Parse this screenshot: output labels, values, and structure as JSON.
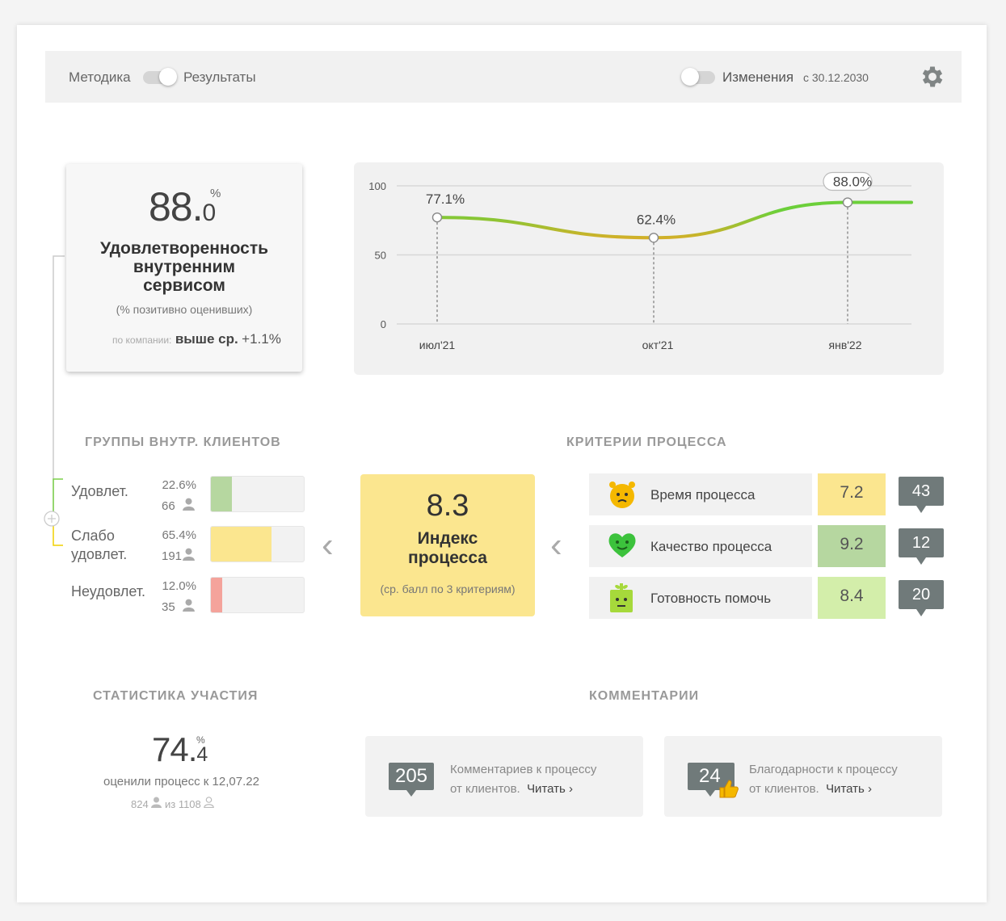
{
  "topbar": {
    "method_label": "Методика",
    "results_label": "Результаты",
    "changes_label": "Изменения",
    "changes_since": "с 30.12.2030"
  },
  "kpi": {
    "value_int": "88.",
    "value_dec": "0",
    "unit": "%",
    "title_line1": "Удовлетворенность",
    "title_line2": "внутренним",
    "title_line3": "сервисом",
    "subtitle": "(% позитивно оценивших)",
    "company_label": "по компании:",
    "company_value": "выше ср.",
    "company_delta": "+1.1%"
  },
  "chart_data": {
    "type": "line",
    "categories": [
      "июл'21",
      "окт'21",
      "янв'22"
    ],
    "values": [
      77.1,
      62.4,
      88.0
    ],
    "point_labels": [
      "77.1%",
      "62.4%",
      "88.0%"
    ],
    "yticks": [
      0,
      50,
      100
    ],
    "ylim": [
      0,
      100
    ],
    "grid": true,
    "colors": {
      "high": "#6ccf3a",
      "low": "#f5a623"
    }
  },
  "groups": {
    "heading": "ГРУППЫ ВНУТР. КЛИЕНТОВ",
    "rows": [
      {
        "name1": "Удовлет.",
        "name2": "",
        "pct": "22.6%",
        "count": "66",
        "fraction": 0.226,
        "color": "#b6d7a0"
      },
      {
        "name1": "Слабо",
        "name2": "удовлет.",
        "pct": "65.4%",
        "count": "191",
        "fraction": 0.654,
        "color": "#fbe68f"
      },
      {
        "name1": "Неудовлет.",
        "name2": "",
        "pct": "12.0%",
        "count": "35",
        "fraction": 0.12,
        "color": "#f4a39b"
      }
    ]
  },
  "index": {
    "value": "8.3",
    "title_line1": "Индекс",
    "title_line2": "процесса",
    "subtitle": "(ср. балл по 3 критериям)"
  },
  "criteria": {
    "heading": "КРИТЕРИИ ПРОЦЕССА",
    "rows": [
      {
        "name": "Время процесса",
        "score": "7.2",
        "comments": "43",
        "color": "#fbe68f",
        "icon": "alarm-clock-face-icon"
      },
      {
        "name": "Качество процесса",
        "score": "9.2",
        "comments": "12",
        "color": "#b6d7a0",
        "icon": "heart-face-icon"
      },
      {
        "name": "Готовность помочь",
        "score": "8.4",
        "comments": "20",
        "color": "#d3eeaa",
        "icon": "gift-face-icon"
      }
    ]
  },
  "stats": {
    "heading": "СТАТИСТИКА УЧАСТИЯ",
    "value_int": "74.",
    "value_dec": "4",
    "unit": "%",
    "caption": "оценили процесс к 12,07.22",
    "count": "824",
    "of_label": "из",
    "total": "1108"
  },
  "comments": {
    "heading": "КОММЕНТАРИИ",
    "cards": [
      {
        "count": "205",
        "line1": "Комментариев к процессу",
        "line2": "от клиентов.",
        "link": "Читать"
      },
      {
        "count": "24",
        "line1": "Благодарности к процессу",
        "line2": "от клиентов.",
        "link": "Читать"
      }
    ]
  }
}
